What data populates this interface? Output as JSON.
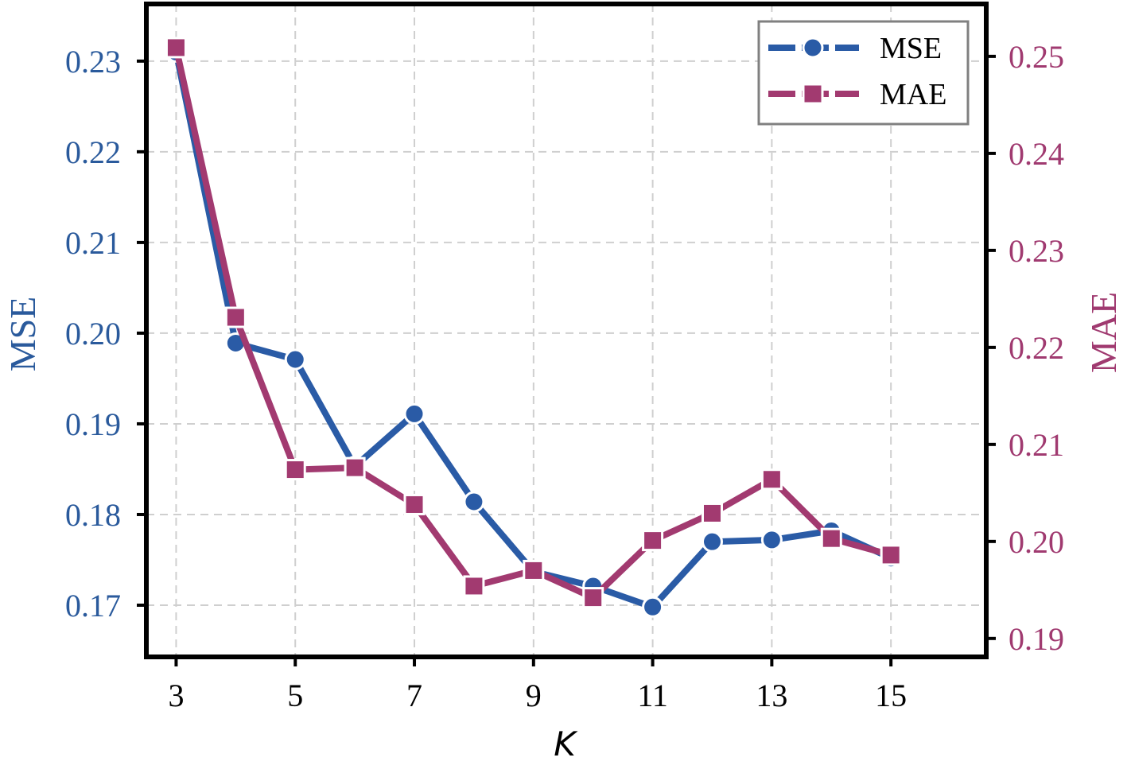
{
  "chart_data": {
    "type": "line",
    "title": "",
    "xlabel": "K",
    "ylabel_left": "MSE",
    "ylabel_right": "MAE",
    "x": [
      3,
      4,
      5,
      6,
      7,
      8,
      9,
      10,
      11,
      12,
      13,
      14,
      15
    ],
    "xticks": [
      3,
      5,
      7,
      9,
      11,
      13,
      15
    ],
    "xlim": [
      2.5,
      16.6
    ],
    "ylim_left": [
      0.1643,
      0.2363
    ],
    "ylim_right": [
      0.1881,
      0.2554
    ],
    "yticks_left": [
      0.17,
      0.18,
      0.19,
      0.2,
      0.21,
      0.22,
      0.23
    ],
    "yticks_right": [
      0.19,
      0.2,
      0.21,
      0.22,
      0.23,
      0.24,
      0.25
    ],
    "grid": true,
    "legend_position": "top-right",
    "series": [
      {
        "name": "MSE",
        "axis": "left",
        "marker": "circle",
        "color": "#2a5ba6",
        "values": [
          0.231,
          0.1989,
          0.1971,
          0.1853,
          0.1911,
          0.1814,
          0.1737,
          0.1721,
          0.1698,
          0.177,
          0.1772,
          0.1782,
          0.1752
        ]
      },
      {
        "name": "MAE",
        "axis": "right",
        "marker": "square",
        "color": "#a23a70",
        "values": [
          0.2509,
          0.2231,
          0.2074,
          0.2076,
          0.2038,
          0.1954,
          0.197,
          0.1942,
          0.2001,
          0.2029,
          0.2064,
          0.2003,
          0.1986
        ]
      }
    ]
  }
}
